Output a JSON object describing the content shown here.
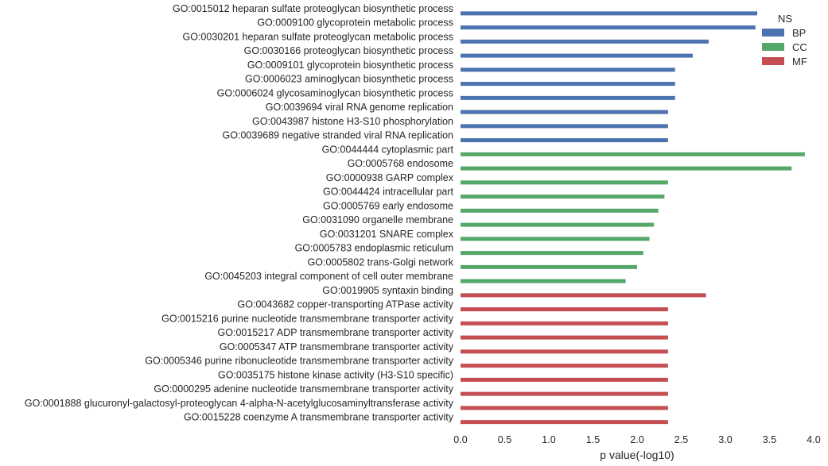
{
  "chart_data": {
    "type": "bar",
    "orientation": "horizontal",
    "xlabel": "p value(-log10)",
    "xlim": [
      0,
      4.0
    ],
    "x_ticks": [
      "0.0",
      "0.5",
      "1.0",
      "1.5",
      "2.0",
      "2.5",
      "3.0",
      "3.5",
      "4.0"
    ],
    "grid": false,
    "legend": {
      "title": "NS",
      "placement": "top-right",
      "entries": [
        {
          "name": "BP",
          "color": "#4c72b0"
        },
        {
          "name": "CC",
          "color": "#55a868"
        },
        {
          "name": "MF",
          "color": "#c44e52"
        }
      ]
    },
    "categories": [
      {
        "label": "GO:0015012 heparan sulfate proteoglycan biosynthetic process",
        "ns": "BP",
        "value": 3.36
      },
      {
        "label": "GO:0009100 glycoprotein metabolic process",
        "ns": "BP",
        "value": 3.34
      },
      {
        "label": "GO:0030201 heparan sulfate proteoglycan metabolic process",
        "ns": "BP",
        "value": 2.81
      },
      {
        "label": "GO:0030166 proteoglycan biosynthetic process",
        "ns": "BP",
        "value": 2.63
      },
      {
        "label": "GO:0009101 glycoprotein biosynthetic process",
        "ns": "BP",
        "value": 2.43
      },
      {
        "label": "GO:0006023 aminoglycan biosynthetic process",
        "ns": "BP",
        "value": 2.43
      },
      {
        "label": "GO:0006024 glycosaminoglycan biosynthetic process",
        "ns": "BP",
        "value": 2.43
      },
      {
        "label": "GO:0039694 viral RNA genome replication",
        "ns": "BP",
        "value": 2.35
      },
      {
        "label": "GO:0043987 histone H3-S10 phosphorylation",
        "ns": "BP",
        "value": 2.35
      },
      {
        "label": "GO:0039689 negative stranded viral RNA replication",
        "ns": "BP",
        "value": 2.35
      },
      {
        "label": "GO:0044444 cytoplasmic part",
        "ns": "CC",
        "value": 3.9
      },
      {
        "label": "GO:0005768 endosome",
        "ns": "CC",
        "value": 3.75
      },
      {
        "label": "GO:0000938 GARP complex",
        "ns": "CC",
        "value": 2.35
      },
      {
        "label": "GO:0044424 intracellular part",
        "ns": "CC",
        "value": 2.31
      },
      {
        "label": "GO:0005769 early endosome",
        "ns": "CC",
        "value": 2.24
      },
      {
        "label": "GO:0031090 organelle membrane",
        "ns": "CC",
        "value": 2.19
      },
      {
        "label": "GO:0031201 SNARE complex",
        "ns": "CC",
        "value": 2.14
      },
      {
        "label": "GO:0005783 endoplasmic reticulum",
        "ns": "CC",
        "value": 2.07
      },
      {
        "label": "GO:0005802 trans-Golgi network",
        "ns": "CC",
        "value": 2.0
      },
      {
        "label": "GO:0045203 integral component of cell outer membrane",
        "ns": "CC",
        "value": 1.87
      },
      {
        "label": "GO:0019905 syntaxin binding",
        "ns": "MF",
        "value": 2.78
      },
      {
        "label": "GO:0043682 copper-transporting ATPase activity",
        "ns": "MF",
        "value": 2.35
      },
      {
        "label": "GO:0015216 purine nucleotide transmembrane transporter activity",
        "ns": "MF",
        "value": 2.35
      },
      {
        "label": "GO:0015217 ADP transmembrane transporter activity",
        "ns": "MF",
        "value": 2.35
      },
      {
        "label": "GO:0005347 ATP transmembrane transporter activity",
        "ns": "MF",
        "value": 2.35
      },
      {
        "label": "GO:0005346 purine ribonucleotide transmembrane transporter activity",
        "ns": "MF",
        "value": 2.35
      },
      {
        "label": "GO:0035175 histone kinase activity (H3-S10 specific)",
        "ns": "MF",
        "value": 2.35
      },
      {
        "label": "GO:0000295 adenine nucleotide transmembrane transporter activity",
        "ns": "MF",
        "value": 2.35
      },
      {
        "label": "GO:0001888 glucuronyl-galactosyl-proteoglycan 4-alpha-N-acetylglucosaminyltransferase activity",
        "ns": "MF",
        "value": 2.35
      },
      {
        "label": "GO:0015228 coenzyme A transmembrane transporter activity",
        "ns": "MF",
        "value": 2.35
      }
    ]
  }
}
